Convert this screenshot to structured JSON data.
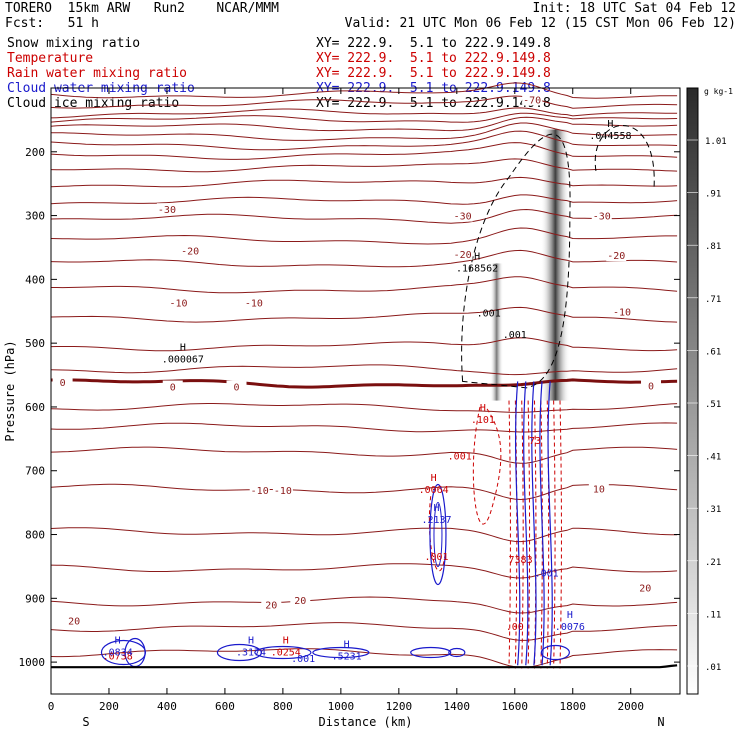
{
  "header": {
    "model_title": "TORERO  15km ARW   Run2    NCAR/MMM",
    "init_label": "Init: 18 UTC Sat 04 Feb 12",
    "forecast_label": "Fcst:   51 h",
    "valid_label": "Valid: 21 UTC Mon 06 Feb 12 (15 CST Mon 06 Feb 12)"
  },
  "fields": [
    {
      "name": "Snow mixing ratio",
      "xy": "XY= 222.9.  5.1 to 222.9.149.8",
      "color": "#000000"
    },
    {
      "name": "Temperature",
      "xy": "XY= 222.9.  5.1 to 222.9.149.8",
      "color": "#cc0000"
    },
    {
      "name": "Rain water mixing ratio",
      "xy": "XY= 222.9.  5.1 to 222.9.149.8",
      "color": "#cc0000"
    },
    {
      "name": "Cloud water mixing ratio",
      "xy": "XY= 222.9.  5.1 to 222.9.149.8",
      "color": "#1a1acc"
    },
    {
      "name": "Cloud ice mixing ratio",
      "xy": "XY= 222.9.  5.1 to 222.9.149.8",
      "color": "#000000"
    }
  ],
  "chart_data": {
    "type": "cross-section",
    "xlabel": "Distance (km)",
    "ylabel": "Pressure (hPa)",
    "xlim": [
      0,
      2170
    ],
    "ylim": [
      1050,
      100
    ],
    "x_ticks": [
      0,
      200,
      400,
      600,
      800,
      1000,
      1200,
      1400,
      1600,
      1800,
      2000
    ],
    "y_ticks": [
      200,
      300,
      400,
      500,
      600,
      700,
      800,
      900,
      1000
    ],
    "x_ends": {
      "left": "S",
      "right": "N"
    },
    "colorbar": {
      "unit": "g kg-1",
      "labels": [
        ".01",
        ".11",
        ".21",
        ".31",
        ".41",
        ".51",
        ".61",
        ".71",
        ".81",
        ".91",
        "1.01"
      ]
    },
    "temperature_labels": [
      {
        "text": "-70",
        "x": 1660,
        "p": 118
      },
      {
        "text": "-30",
        "x": 400,
        "p": 290
      },
      {
        "text": "-30",
        "x": 1420,
        "p": 300
      },
      {
        "text": "-30",
        "x": 1900,
        "p": 300
      },
      {
        "text": "-20",
        "x": 480,
        "p": 355
      },
      {
        "text": "-20",
        "x": 1420,
        "p": 360
      },
      {
        "text": "-20",
        "x": 1950,
        "p": 362
      },
      {
        "text": "-10",
        "x": 440,
        "p": 436
      },
      {
        "text": "-10",
        "x": 700,
        "p": 436
      },
      {
        "text": "-10",
        "x": 1970,
        "p": 450
      },
      {
        "text": "0",
        "x": 40,
        "p": 561
      },
      {
        "text": "0",
        "x": 420,
        "p": 568
      },
      {
        "text": "0",
        "x": 640,
        "p": 568
      },
      {
        "text": "0",
        "x": 2070,
        "p": 566
      },
      {
        "text": "-10",
        "x": 720,
        "p": 730
      },
      {
        "text": "-10",
        "x": 800,
        "p": 730
      },
      {
        "text": "10",
        "x": 1890,
        "p": 728
      },
      {
        "text": "20",
        "x": 2050,
        "p": 883
      },
      {
        "text": "20",
        "x": 760,
        "p": 910
      },
      {
        "text": "20",
        "x": 860,
        "p": 903
      },
      {
        "text": "20",
        "x": 80,
        "p": 935
      }
    ],
    "temperature_isobars": [
      110,
      125,
      140,
      150,
      162,
      176,
      190,
      205,
      225,
      250,
      278,
      305,
      338,
      375,
      415,
      460,
      505,
      540,
      600,
      632,
      670,
      728,
      795,
      852,
      905,
      945,
      985
    ],
    "highs": [
      {
        "label": "H",
        "value": ".044558",
        "x": 1930,
        "p": 180,
        "color": "#000000"
      },
      {
        "label": "H",
        "value": ".168562",
        "x": 1470,
        "p": 388,
        "color": "#000000"
      },
      {
        "label": "H",
        "value": ".000067",
        "x": 455,
        "p": 530,
        "color": "#000000"
      },
      {
        "label": "H",
        "value": ".101",
        "x": 1490,
        "p": 625,
        "color": "#cc0000"
      },
      {
        "label": "H",
        "value": ".0064",
        "x": 1320,
        "p": 735,
        "color": "#cc0000"
      },
      {
        "label": "H",
        "value": ".2137",
        "x": 1330,
        "p": 782,
        "color": "#1a1acc"
      },
      {
        "label": "H",
        "value": ".0076",
        "x": 1790,
        "p": 950,
        "color": "#1a1acc"
      },
      {
        "label": "H",
        "value": ".0834",
        "x": 230,
        "p": 990,
        "color": "#1a1acc"
      },
      {
        "label": "H",
        "value": ".3174",
        "x": 690,
        "p": 990,
        "color": "#1a1acc"
      },
      {
        "label": "H",
        "value": ".0254",
        "x": 810,
        "p": 990,
        "color": "#cc0000"
      },
      {
        "label": "H",
        "value": ".5231",
        "x": 1020,
        "p": 996,
        "color": "#1a1acc"
      }
    ],
    "contour_labels": [
      {
        "text": ".001",
        "x": 1510,
        "p": 458,
        "color": "#000000"
      },
      {
        "text": ".001",
        "x": 1600,
        "p": 492,
        "color": "#000000"
      },
      {
        "text": ".001",
        "x": 1410,
        "p": 682,
        "color": "#cc0000"
      },
      {
        "text": ".001",
        "x": 1330,
        "p": 840,
        "color": "#cc0000"
      },
      {
        "text": ".001",
        "x": 1710,
        "p": 866,
        "color": "#1a1acc"
      },
      {
        "text": ".00",
        "x": 1600,
        "p": 950,
        "color": "#cc0000"
      },
      {
        "text": ".001",
        "x": 870,
        "p": 1000,
        "color": "#1a1acc"
      },
      {
        "text": ".0738",
        "x": 230,
        "p": 996,
        "color": "#cc0000"
      },
      {
        "text": "73",
        "x": 1670,
        "p": 658,
        "color": "#cc0000"
      },
      {
        "text": "7383",
        "x": 1620,
        "p": 845,
        "color": "#cc0000"
      }
    ]
  }
}
